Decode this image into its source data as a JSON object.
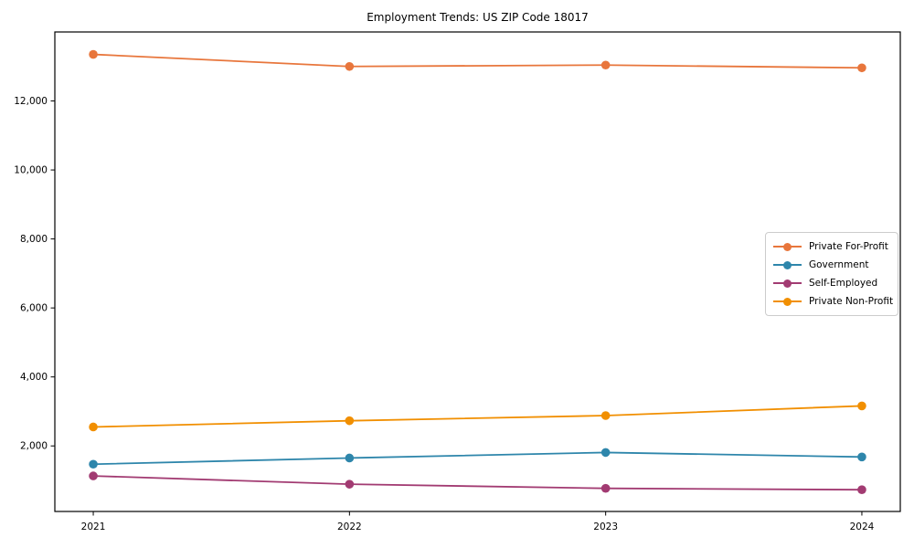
{
  "chart_data": {
    "type": "line",
    "title": "Employment Trends: US ZIP Code 18017",
    "x": [
      2021,
      2022,
      2023,
      2024
    ],
    "categories": [
      "2021",
      "2022",
      "2023",
      "2024"
    ],
    "series": [
      {
        "name": "Private For-Profit",
        "color": "#e8763c",
        "values": [
          13350,
          13000,
          13040,
          12960
        ]
      },
      {
        "name": "Government",
        "color": "#2e86ab",
        "values": [
          1470,
          1650,
          1810,
          1680
        ]
      },
      {
        "name": "Self-Employed",
        "color": "#a23b72",
        "values": [
          1130,
          890,
          770,
          730
        ]
      },
      {
        "name": "Private Non-Profit",
        "color": "#f18f01",
        "values": [
          2550,
          2730,
          2880,
          3160
        ]
      }
    ],
    "xlabel": "",
    "ylabel": "",
    "xlim": [
      2020.85,
      2024.15
    ],
    "ylim": [
      100,
      14000
    ],
    "y_ticks": [
      2000,
      4000,
      6000,
      8000,
      10000,
      12000
    ],
    "y_tick_labels": [
      "2,000",
      "4,000",
      "6,000",
      "8,000",
      "10,000",
      "12,000"
    ],
    "grid": false,
    "legend_position": "center-right",
    "marker": "circle",
    "axis_color": "#000000"
  }
}
